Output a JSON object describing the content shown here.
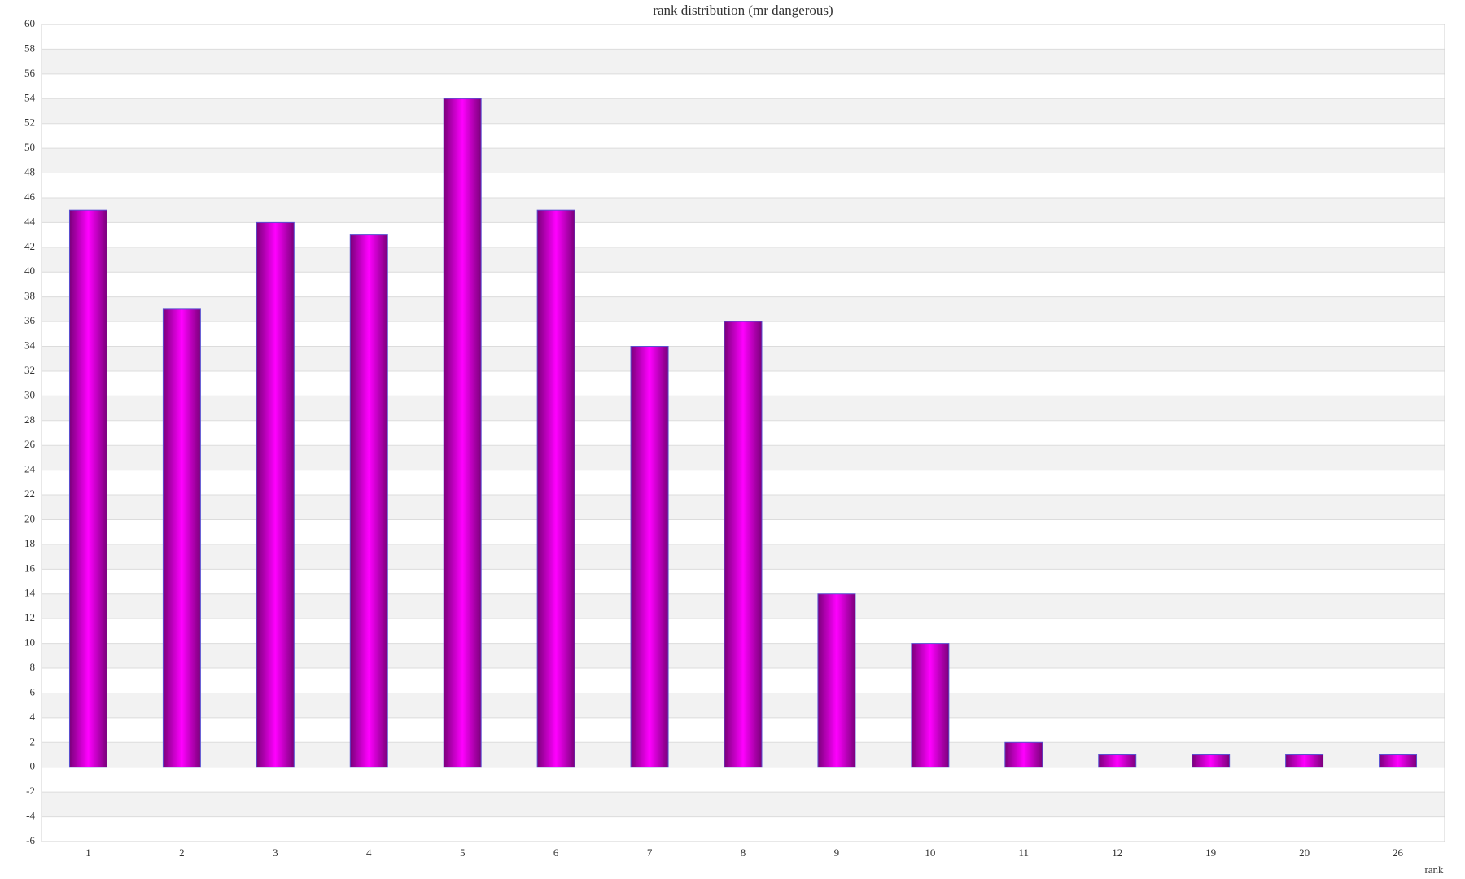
{
  "chart_data": {
    "type": "bar",
    "title": "rank distribution (mr dangerous)",
    "x_label": "rank",
    "categories": [
      "1",
      "2",
      "3",
      "4",
      "5",
      "6",
      "7",
      "8",
      "9",
      "10",
      "11",
      "12",
      "19",
      "20",
      "26"
    ],
    "values": [
      45,
      37,
      44,
      43,
      54,
      45,
      34,
      36,
      14,
      10,
      2,
      1,
      1,
      1,
      1
    ],
    "color": "#ff00ff",
    "ylim": [
      -6,
      60
    ],
    "yticks": [
      -6,
      -4,
      -2,
      0,
      2,
      4,
      6,
      8,
      10,
      12,
      14,
      16,
      18,
      20,
      22,
      24,
      26,
      28,
      30,
      32,
      34,
      36,
      38,
      40,
      42,
      44,
      46,
      48,
      50,
      52,
      54,
      56,
      58,
      60
    ],
    "grid": true
  }
}
